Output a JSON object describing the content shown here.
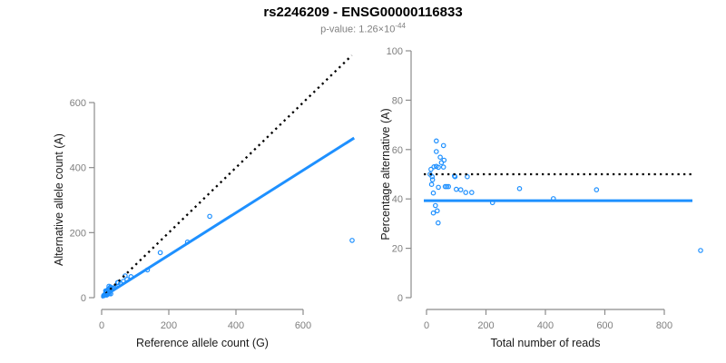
{
  "header": {
    "title": "rs2246209 - ENSG00000116833",
    "pvalue_label": "p-value: 1.26×10",
    "pvalue_exponent": "-44"
  },
  "colors": {
    "point_blue": "#1E90FF",
    "fit_line_blue": "#1E90FF",
    "reference_line_black": "#000000",
    "axis_gray": "#8C8C8C",
    "tick_label_gray": "#7F7F7F",
    "axis_title_color": "#1A1A1A",
    "subtitle_gray": "#808080"
  },
  "chart_data": [
    {
      "type": "scatter",
      "panel": "left",
      "title": "rs2246209 - ENSG00000116833",
      "subtitle": "p-value: 1.26×10⁻⁴⁴",
      "xlabel": "Reference allele count (G)",
      "ylabel": "Alternative allele count (A)",
      "xlim": [
        0,
        760
      ],
      "ylim": [
        0,
        770
      ],
      "xticks": [
        0,
        200,
        400,
        600
      ],
      "yticks": [
        0,
        200,
        400,
        600
      ],
      "grid": false,
      "legend": "none",
      "marker": "open-circle",
      "points": [
        [
          12,
          21
        ],
        [
          21.9,
          35.1
        ],
        [
          13.5,
          19.5
        ],
        [
          19.8,
          26.2
        ],
        [
          26.1,
          32.9
        ],
        [
          22.7,
          27.4
        ],
        [
          11.8,
          13.3
        ],
        [
          15.4,
          17.6
        ],
        [
          18.9,
          21.1
        ],
        [
          26.8,
          30.2
        ],
        [
          47.7,
          46.3
        ],
        [
          49,
          47
        ],
        [
          69.9,
          67.1
        ],
        [
          10.4,
          9.6
        ],
        [
          9.2,
          7.8
        ],
        [
          22.1,
          17.9
        ],
        [
          34.7,
          28.4
        ],
        [
          37.4,
          30.6
        ],
        [
          40.7,
          33.3
        ],
        [
          56.1,
          43.9
        ],
        [
          64.7,
          50.3
        ],
        [
          13.2,
          9.8
        ],
        [
          75.8,
          56.2
        ],
        [
          87.2,
          64.8
        ],
        [
          174.7,
          138.3
        ],
        [
          322,
          250
        ],
        [
          255.8,
          171.2
        ],
        [
          136.5,
          85.5
        ],
        [
          18.8,
          11.2
        ],
        [
          23.3,
          12.7
        ],
        [
          15.1,
          7.9
        ],
        [
          27.2,
          11.8
        ],
        [
          745.9,
          176.1
        ],
        [
          6,
          6
        ],
        [
          7.2,
          7.8
        ],
        [
          9.7,
          9.3
        ]
      ],
      "lines": [
        {
          "name": "identity-line",
          "style": "dotted",
          "color": "#000000",
          "from": [
            0,
            0
          ],
          "to": [
            745,
            745
          ]
        },
        {
          "name": "fit-line",
          "style": "solid",
          "color": "#1E90FF",
          "from": [
            0,
            0
          ],
          "to": [
            752,
            491
          ],
          "slope": 0.653
        }
      ]
    },
    {
      "type": "scatter",
      "panel": "right",
      "xlabel": "Total number of reads",
      "ylabel": "Percentage alternative (A)",
      "xlim": [
        0,
        930
      ],
      "ylim": [
        0,
        100
      ],
      "xticks": [
        0,
        200,
        400,
        600,
        800
      ],
      "yticks": [
        0,
        20,
        40,
        60,
        80,
        100
      ],
      "grid": false,
      "legend": "none",
      "marker": "open-circle",
      "points": [
        [
          33,
          63.5
        ],
        [
          57,
          61.6
        ],
        [
          33,
          59.2
        ],
        [
          46,
          56.9
        ],
        [
          59,
          55.7
        ],
        [
          50,
          54.7
        ],
        [
          25,
          53
        ],
        [
          33,
          53.2
        ],
        [
          40,
          52.8
        ],
        [
          57,
          52.9
        ],
        [
          94,
          49.3
        ],
        [
          96,
          49
        ],
        [
          137,
          49
        ],
        [
          20,
          47.8
        ],
        [
          17,
          45.9
        ],
        [
          40,
          44.7
        ],
        [
          63,
          45
        ],
        [
          68,
          45
        ],
        [
          74,
          45
        ],
        [
          100,
          43.9
        ],
        [
          115,
          43.7
        ],
        [
          23,
          42.4
        ],
        [
          132,
          42.6
        ],
        [
          152,
          42.6
        ],
        [
          313,
          44.2
        ],
        [
          572,
          43.7
        ],
        [
          427,
          40.1
        ],
        [
          222,
          38.5
        ],
        [
          30,
          37.3
        ],
        [
          36,
          35.2
        ],
        [
          23,
          34.3
        ],
        [
          39,
          30.3
        ],
        [
          922,
          19.1
        ],
        [
          12,
          50
        ],
        [
          15,
          52
        ],
        [
          19,
          49
        ]
      ],
      "lines": [
        {
          "name": "expected-50pct-line",
          "style": "dotted",
          "color": "#000000",
          "y": 50
        },
        {
          "name": "mean-ratio-line",
          "style": "solid",
          "color": "#1E90FF",
          "y": 39.3
        }
      ]
    }
  ]
}
